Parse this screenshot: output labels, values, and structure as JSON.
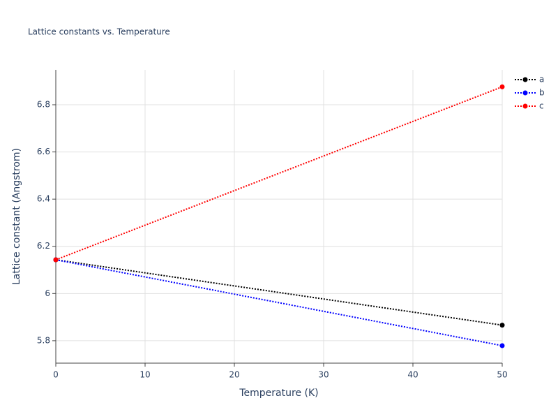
{
  "chart_data": {
    "type": "line",
    "title": "Lattice constants vs. Temperature",
    "x_label": "Temperature (K)",
    "y_label": "Lattice constant (Angstrom)",
    "x": [
      0,
      50
    ],
    "series": [
      {
        "name": "a",
        "color": "#000000",
        "values": [
          6.143,
          5.866
        ]
      },
      {
        "name": "b",
        "color": "#0000ff",
        "values": [
          6.143,
          5.779
        ]
      },
      {
        "name": "c",
        "color": "#ff0000",
        "values": [
          6.143,
          6.876
        ]
      }
    ],
    "xlim": [
      0,
      50
    ],
    "xticks": [
      0,
      10,
      20,
      30,
      40,
      50
    ],
    "ylim": [
      5.705,
      6.948
    ],
    "yticks": [
      5.8,
      6,
      6.2,
      6.4,
      6.6,
      6.8
    ],
    "grid": true,
    "legend": "top-right"
  }
}
